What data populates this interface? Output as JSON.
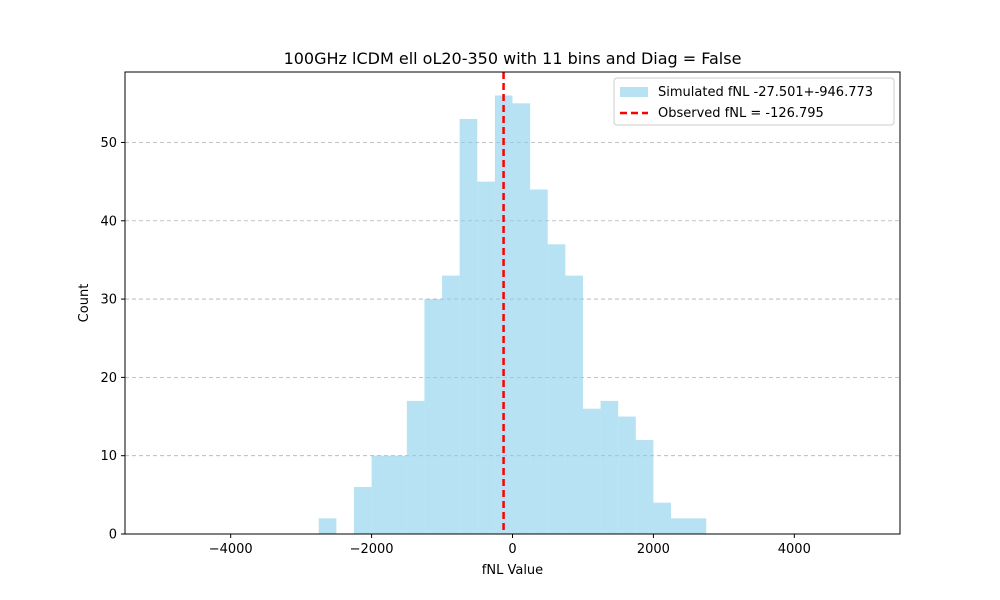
{
  "chart_data": {
    "type": "bar",
    "title": "100GHz lCDM ell oL20-350 with 11 bins and Diag = False",
    "xlabel": "fNL Value",
    "ylabel": "Count",
    "xlim": [
      -5500,
      5500
    ],
    "ylim": [
      0,
      59
    ],
    "xticks": [
      -4000,
      -2000,
      0,
      2000,
      4000
    ],
    "xtick_labels": [
      "−4000",
      "−2000",
      "0",
      "2000",
      "4000"
    ],
    "yticks": [
      0,
      10,
      20,
      30,
      40,
      50
    ],
    "ytick_labels": [
      "0",
      "10",
      "20",
      "30",
      "40",
      "50"
    ],
    "grid": "y-dashed",
    "bar_color": "#87ceeb",
    "observed_color": "#ff0000",
    "bins": [
      {
        "x0": -2750,
        "x1": -2500,
        "count": 2
      },
      {
        "x0": -2250,
        "x1": -2000,
        "count": 6
      },
      {
        "x0": -2000,
        "x1": -1500,
        "count": 10
      },
      {
        "x0": -1500,
        "x1": -1250,
        "count": 17
      },
      {
        "x0": -1250,
        "x1": -1000,
        "count": 30
      },
      {
        "x0": -1000,
        "x1": -750,
        "count": 33
      },
      {
        "x0": -750,
        "x1": -500,
        "count": 53
      },
      {
        "x0": -500,
        "x1": -250,
        "count": 45
      },
      {
        "x0": -250,
        "x1": 0,
        "count": 56
      },
      {
        "x0": 0,
        "x1": 250,
        "count": 55
      },
      {
        "x0": 250,
        "x1": 500,
        "count": 44
      },
      {
        "x0": 500,
        "x1": 750,
        "count": 37
      },
      {
        "x0": 750,
        "x1": 1000,
        "count": 33
      },
      {
        "x0": 1000,
        "x1": 1250,
        "count": 16
      },
      {
        "x0": 1250,
        "x1": 1500,
        "count": 17
      },
      {
        "x0": 1500,
        "x1": 1750,
        "count": 15
      },
      {
        "x0": 1750,
        "x1": 2000,
        "count": 12
      },
      {
        "x0": 2000,
        "x1": 2250,
        "count": 4
      },
      {
        "x0": 2250,
        "x1": 2750,
        "count": 2
      }
    ],
    "observed_value": -126.795,
    "legend": {
      "placement": "top-right",
      "simulated_label": "Simulated fNL -27.501+-946.773",
      "observed_label": "Observed fNL = -126.795"
    }
  }
}
